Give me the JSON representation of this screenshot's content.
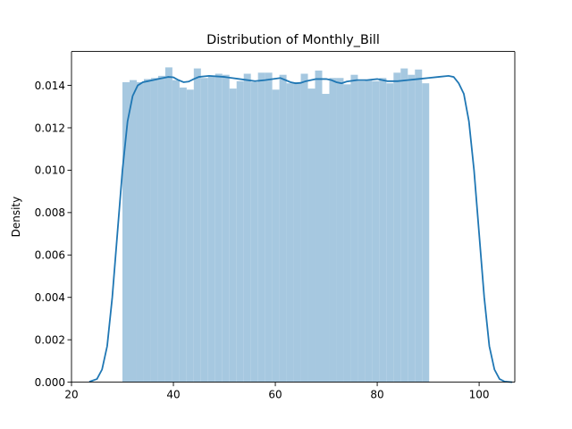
{
  "chart_data": {
    "type": "bar",
    "title": "Distribution of Monthly_Bill",
    "xlabel": "",
    "ylabel": "Density",
    "xlim": [
      20,
      107
    ],
    "ylim": [
      0,
      0.0156
    ],
    "xticks": [
      20,
      40,
      60,
      80,
      100
    ],
    "xtick_labels": [
      "20",
      "40",
      "60",
      "80",
      "100"
    ],
    "yticks": [
      0,
      0.002,
      0.004,
      0.006,
      0.008,
      0.01,
      0.012,
      0.014
    ],
    "ytick_labels": [
      "0.000",
      "0.002",
      "0.004",
      "0.006",
      "0.008",
      "0.010",
      "0.012",
      "0.014"
    ],
    "grid": false,
    "bar_color": "#a6c8e0",
    "line_color": "#1f77b4",
    "histogram": {
      "bin_start": 30,
      "bin_width": 1.4,
      "densities": [
        0.01415,
        0.01425,
        0.01415,
        0.0143,
        0.01435,
        0.01445,
        0.01485,
        0.01425,
        0.0139,
        0.0138,
        0.0148,
        0.01435,
        0.01445,
        0.01455,
        0.0145,
        0.01385,
        0.0142,
        0.01455,
        0.01415,
        0.0146,
        0.0146,
        0.0138,
        0.0145,
        0.0141,
        0.01415,
        0.01455,
        0.01385,
        0.0147,
        0.0136,
        0.01435,
        0.01435,
        0.01405,
        0.0145,
        0.0142,
        0.01425,
        0.0142,
        0.01435,
        0.0141,
        0.0146,
        0.0148,
        0.0145,
        0.01475,
        0.0141
      ]
    },
    "kde": {
      "x": [
        23.5,
        25,
        26,
        27,
        28,
        29,
        30,
        31,
        32,
        33,
        34,
        35,
        36,
        37,
        38,
        39,
        40,
        41,
        42,
        43,
        44,
        45,
        47,
        50,
        53,
        56,
        58,
        61,
        62,
        63,
        64,
        65,
        66,
        68,
        70,
        71,
        72,
        73,
        74,
        76,
        78,
        80,
        82,
        84,
        86,
        88,
        90,
        92,
        94,
        95,
        96,
        97,
        98,
        99,
        100,
        101,
        102,
        103,
        104,
        105,
        106.5
      ],
      "y": [
        2e-05,
        0.00015,
        0.0006,
        0.0017,
        0.004,
        0.007,
        0.01,
        0.0123,
        0.0135,
        0.014,
        0.01415,
        0.0142,
        0.01425,
        0.0143,
        0.01435,
        0.0144,
        0.01438,
        0.01425,
        0.01415,
        0.01418,
        0.0143,
        0.0144,
        0.01445,
        0.0144,
        0.0143,
        0.0142,
        0.01425,
        0.01435,
        0.01425,
        0.01415,
        0.0141,
        0.01412,
        0.0142,
        0.0143,
        0.0143,
        0.01425,
        0.01415,
        0.0141,
        0.01418,
        0.01425,
        0.01425,
        0.0143,
        0.0142,
        0.0142,
        0.01425,
        0.0143,
        0.01435,
        0.0144,
        0.01445,
        0.0144,
        0.0141,
        0.0136,
        0.0123,
        0.01,
        0.007,
        0.004,
        0.0017,
        0.0006,
        0.00015,
        3e-05,
        0.0
      ]
    }
  }
}
